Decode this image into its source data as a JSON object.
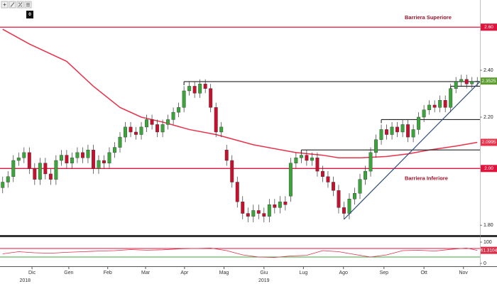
{
  "chart_data": {
    "type": "candlestick",
    "toolbar_badge": "0",
    "xlim": [
      -0.5,
      89.5
    ],
    "xticks": [
      {
        "value": 5.5,
        "label": "Dic"
      },
      {
        "value": 12.4,
        "label": "Gen"
      },
      {
        "value": 19.7,
        "label": "Feb"
      },
      {
        "value": 26.8,
        "label": "Mar"
      },
      {
        "value": 34.1,
        "label": "Apr"
      },
      {
        "value": 41.5,
        "label": "Mag"
      },
      {
        "value": 49,
        "label": "Giu"
      },
      {
        "value": 56.4,
        "label": "Lug"
      },
      {
        "value": 63.9,
        "label": "Ago"
      },
      {
        "value": 71.5,
        "label": "Sep"
      },
      {
        "value": 79,
        "label": "Ott"
      },
      {
        "value": 86.4,
        "label": "Nov"
      }
    ],
    "year_labels": [
      {
        "value": 4.2,
        "label": "2018"
      },
      {
        "value": 49,
        "label": "2019"
      }
    ],
    "ylim": [
      1.77,
      2.72
    ],
    "log_scale": true,
    "yticks": [
      {
        "value": 1.8,
        "label": "1.80"
      },
      {
        "value": 2,
        "label": "2.00"
      },
      {
        "value": 2.2,
        "label": "2.20"
      },
      {
        "value": 2.4,
        "label": "2.40"
      },
      {
        "value": 2.6,
        "label": "2.60"
      }
    ],
    "up_color": "#3aa63a",
    "down_color": "#c8102e",
    "last_color": "#5c9e2e",
    "open": [
      1.93,
      1.95,
      1.97,
      2.03,
      2.04,
      2.06,
      2.0,
      1.96,
      2.02,
      1.98,
      1.96,
      2.03,
      2.05,
      2.02,
      2.04,
      2.06,
      2.04,
      2.07,
      2.0,
      2.03,
      2.02,
      2.06,
      2.08,
      2.12,
      2.16,
      2.14,
      2.13,
      2.16,
      2.19,
      2.17,
      2.14,
      2.17,
      2.19,
      2.22,
      2.24,
      2.31,
      2.33,
      2.3,
      2.34,
      2.32,
      2.24,
      2.14,
      2.07,
      2.03,
      1.95,
      1.88,
      1.84,
      1.83,
      1.85,
      1.84,
      1.83,
      1.87,
      1.86,
      1.88,
      1.9,
      2.02,
      2.04,
      2.05,
      2.03,
      2.04,
      1.99,
      1.97,
      1.95,
      1.92,
      1.86,
      1.84,
      1.89,
      1.91,
      1.96,
      1.99,
      2.06,
      2.11,
      2.15,
      2.13,
      2.16,
      2.14,
      2.17,
      2.12,
      2.15,
      2.2,
      2.23,
      2.25,
      2.24,
      2.27,
      2.24,
      2.32,
      2.35,
      2.36,
      2.34,
      2.35
    ],
    "high": [
      1.97,
      1.99,
      2.05,
      2.06,
      2.08,
      2.08,
      2.02,
      2.04,
      2.04,
      2.0,
      2.05,
      2.07,
      2.07,
      2.06,
      2.08,
      2.08,
      2.09,
      2.09,
      2.05,
      2.05,
      2.08,
      2.1,
      2.14,
      2.18,
      2.18,
      2.16,
      2.18,
      2.21,
      2.21,
      2.19,
      2.19,
      2.21,
      2.24,
      2.26,
      2.33,
      2.35,
      2.35,
      2.36,
      2.36,
      2.34,
      2.26,
      2.18,
      2.09,
      2.05,
      1.97,
      1.9,
      1.86,
      1.87,
      1.87,
      1.86,
      1.89,
      1.89,
      1.9,
      1.9,
      2.04,
      2.06,
      2.07,
      2.07,
      2.06,
      2.06,
      2.01,
      1.99,
      1.97,
      1.94,
      1.88,
      1.91,
      1.93,
      1.98,
      2.01,
      2.08,
      2.13,
      2.17,
      2.17,
      2.18,
      2.18,
      2.19,
      2.19,
      2.17,
      2.22,
      2.25,
      2.27,
      2.27,
      2.29,
      2.29,
      2.34,
      2.37,
      2.38,
      2.38,
      2.37,
      2.37
    ],
    "low": [
      1.91,
      1.93,
      1.95,
      2.01,
      2.02,
      1.98,
      1.94,
      1.94,
      1.96,
      1.94,
      1.94,
      2.01,
      2.0,
      2.0,
      2.02,
      2.02,
      2.02,
      1.98,
      1.98,
      2.0,
      2.0,
      2.04,
      2.06,
      2.1,
      2.12,
      2.11,
      2.11,
      2.14,
      2.15,
      2.12,
      2.12,
      2.15,
      2.17,
      2.2,
      2.22,
      2.29,
      2.28,
      2.28,
      2.3,
      2.22,
      2.12,
      2.12,
      2.01,
      1.93,
      1.86,
      1.82,
      1.81,
      1.81,
      1.82,
      1.81,
      1.81,
      1.84,
      1.84,
      1.85,
      1.88,
      2.0,
      2.02,
      2.01,
      2.01,
      1.97,
      1.95,
      1.93,
      1.9,
      1.84,
      1.82,
      1.82,
      1.87,
      1.89,
      1.94,
      1.97,
      2.04,
      2.09,
      2.11,
      2.11,
      2.12,
      2.12,
      2.1,
      2.1,
      2.13,
      2.18,
      2.21,
      2.22,
      2.22,
      2.22,
      2.22,
      2.3,
      2.33,
      2.32,
      2.32,
      2.33
    ],
    "close": [
      1.95,
      1.97,
      2.03,
      2.04,
      2.06,
      2.0,
      1.96,
      2.02,
      1.98,
      1.96,
      2.03,
      2.05,
      2.02,
      2.04,
      2.06,
      2.04,
      2.07,
      2.0,
      2.03,
      2.02,
      2.06,
      2.08,
      2.12,
      2.16,
      2.14,
      2.13,
      2.16,
      2.19,
      2.17,
      2.14,
      2.17,
      2.19,
      2.22,
      2.24,
      2.31,
      2.33,
      2.3,
      2.34,
      2.32,
      2.24,
      2.14,
      2.16,
      2.03,
      1.95,
      1.88,
      1.84,
      1.83,
      1.85,
      1.84,
      1.83,
      1.87,
      1.86,
      1.88,
      1.87,
      2.02,
      2.04,
      2.05,
      2.03,
      2.04,
      1.99,
      1.97,
      1.95,
      1.92,
      1.86,
      1.84,
      1.89,
      1.91,
      1.96,
      1.99,
      2.06,
      2.11,
      2.15,
      2.13,
      2.16,
      2.14,
      2.17,
      2.12,
      2.15,
      2.2,
      2.23,
      2.25,
      2.24,
      2.27,
      2.24,
      2.32,
      2.35,
      2.36,
      2.34,
      2.35,
      2.3525
    ],
    "moving_average": {
      "color": "#e8314a",
      "x": [
        0,
        5,
        12,
        17,
        22,
        26,
        30,
        35,
        40,
        47,
        55,
        60,
        63,
        67,
        72,
        76,
        80,
        85,
        89
      ],
      "values": [
        2.59,
        2.52,
        2.44,
        2.33,
        2.24,
        2.2,
        2.18,
        2.15,
        2.13,
        2.09,
        2.06,
        2.05,
        2.04,
        2.04,
        2.045,
        2.055,
        2.07,
        2.085,
        2.0995
      ]
    },
    "barriers": [
      {
        "label": "Barriera Superiore",
        "value": 2.6,
        "color": "#e0143c"
      },
      {
        "label": "Barriera Inferiore",
        "value": 2,
        "color": "#e0143c"
      }
    ],
    "levels": [
      {
        "value": 2.35,
        "from": 34,
        "to": 89.5
      },
      {
        "value": 2.19,
        "from": 71,
        "to": 89.5
      },
      {
        "value": 2.07,
        "from": 56,
        "to": 89.5
      },
      {
        "value": 2.33,
        "from": 84,
        "to": 89.5
      }
    ],
    "trendline": {
      "color": "#2a4a7f",
      "x": [
        64,
        89.5
      ],
      "values": [
        1.82,
        2.35
      ]
    },
    "rsi": {
      "color": "#d9304a",
      "ylim": [
        0,
        100
      ],
      "yticks": [
        0,
        100
      ],
      "levels": [
        {
          "value": 70,
          "color": "#e0143c"
        },
        {
          "value": 30,
          "color": "#3aa63a"
        }
      ],
      "x": [
        0,
        3,
        6,
        9,
        12,
        15,
        18,
        21,
        24,
        27,
        30,
        33,
        36,
        39,
        42,
        45,
        48,
        51,
        54,
        57,
        60,
        63,
        66,
        69,
        72,
        75,
        78,
        81,
        84,
        87,
        89
      ],
      "values": [
        45,
        55,
        50,
        48,
        52,
        55,
        58,
        60,
        65,
        62,
        64,
        68,
        70,
        72,
        60,
        40,
        30,
        28,
        35,
        38,
        60,
        55,
        42,
        30,
        40,
        60,
        62,
        58,
        66,
        72,
        61.3104
      ]
    }
  }
}
